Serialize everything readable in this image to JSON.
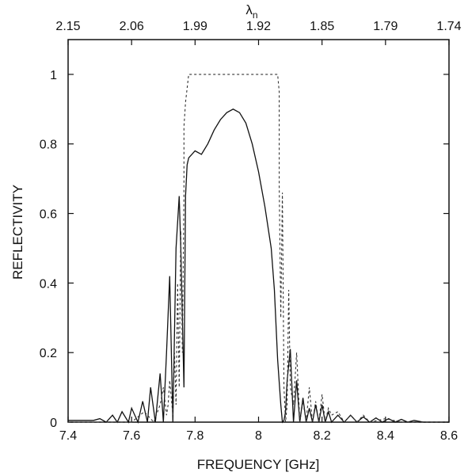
{
  "chart_data": {
    "type": "line",
    "xlabel": "FREQUENCY [GHz]",
    "ylabel": "REFLECTIVITY",
    "top_axis_label": "λ",
    "top_axis_label_sub": "n",
    "xlim": [
      7.4,
      8.6
    ],
    "ylim": [
      0,
      1.1
    ],
    "x_ticks": [
      7.4,
      7.6,
      7.8,
      8.0,
      8.2,
      8.4,
      8.6
    ],
    "x_tick_labels": [
      "7.4",
      "7.6",
      "7.8",
      "8",
      "8.2",
      "8.4",
      "8.6"
    ],
    "y_ticks": [
      0,
      0.2,
      0.4,
      0.6,
      0.8,
      1.0
    ],
    "y_tick_labels": [
      "0",
      "0.2",
      "0.4",
      "0.6",
      "0.8",
      "1"
    ],
    "top_ticks": [
      7.4,
      7.6,
      7.8,
      8.0,
      8.2,
      8.4,
      8.6
    ],
    "top_tick_labels": [
      "2.15",
      "2.06",
      "1.99",
      "1.92",
      "1.85",
      "1.79",
      "1.74"
    ],
    "grid": false,
    "series": [
      {
        "style": "solid",
        "x": [
          7.4,
          7.48,
          7.5,
          7.52,
          7.54,
          7.555,
          7.57,
          7.59,
          7.6,
          7.62,
          7.635,
          7.65,
          7.66,
          7.675,
          7.69,
          7.7,
          7.71,
          7.72,
          7.73,
          7.74,
          7.75,
          7.755,
          7.76,
          7.765,
          7.77,
          7.775,
          7.78,
          7.8,
          7.82,
          7.84,
          7.86,
          7.88,
          7.9,
          7.92,
          7.94,
          7.96,
          7.98,
          8.0,
          8.02,
          8.04,
          8.05,
          8.06,
          8.07,
          8.075,
          8.08,
          8.085,
          8.09,
          8.1,
          8.11,
          8.12,
          8.13,
          8.14,
          8.15,
          8.16,
          8.17,
          8.18,
          8.19,
          8.2,
          8.21,
          8.22,
          8.23,
          8.25,
          8.27,
          8.29,
          8.31,
          8.33,
          8.35,
          8.37,
          8.39,
          8.41,
          8.43,
          8.45,
          8.47,
          8.49,
          8.52,
          8.6
        ],
        "y": [
          0.005,
          0.005,
          0.01,
          0.0,
          0.02,
          0.0,
          0.03,
          0.0,
          0.04,
          0.0,
          0.06,
          0.0,
          0.1,
          0.0,
          0.14,
          0.0,
          0.2,
          0.42,
          0.0,
          0.5,
          0.65,
          0.5,
          0.3,
          0.1,
          0.65,
          0.74,
          0.76,
          0.78,
          0.77,
          0.8,
          0.84,
          0.87,
          0.89,
          0.9,
          0.89,
          0.86,
          0.8,
          0.72,
          0.62,
          0.5,
          0.38,
          0.18,
          0.05,
          0.0,
          0.005,
          0.03,
          0.12,
          0.21,
          0.0,
          0.12,
          0.0,
          0.07,
          0.0,
          0.04,
          0.0,
          0.05,
          0.0,
          0.05,
          0.0,
          0.03,
          0.0,
          0.02,
          0.0,
          0.02,
          0.0,
          0.015,
          0.0,
          0.012,
          0.0,
          0.01,
          0.0,
          0.008,
          0.0,
          0.005,
          0.0,
          0.0
        ]
      },
      {
        "style": "dotted",
        "x": [
          7.4,
          7.6,
          7.64,
          7.67,
          7.69,
          7.7,
          7.71,
          7.715,
          7.72,
          7.73,
          7.735,
          7.74,
          7.745,
          7.75,
          7.755,
          7.76,
          7.765,
          7.765,
          7.77,
          7.78,
          7.8,
          7.9,
          8.0,
          8.06,
          8.065,
          8.065,
          8.07,
          8.075,
          8.08,
          8.085,
          8.09,
          8.095,
          8.1,
          8.11,
          8.12,
          8.13,
          8.14,
          8.15,
          8.16,
          8.17,
          8.18,
          8.19,
          8.2,
          8.21,
          8.22,
          8.23,
          8.25,
          8.27,
          8.29,
          8.31,
          8.33,
          8.35,
          8.4,
          8.45,
          8.6
        ],
        "y": [
          0.0,
          0.0,
          0.03,
          0.0,
          0.05,
          0.1,
          0.02,
          0.05,
          0.12,
          0.02,
          0.2,
          0.05,
          0.4,
          0.1,
          0.55,
          0.2,
          0.66,
          0.85,
          0.92,
          1.0,
          1.0,
          1.0,
          1.0,
          1.0,
          0.95,
          0.68,
          0.3,
          0.66,
          0.1,
          0.0,
          0.05,
          0.38,
          0.1,
          0.05,
          0.2,
          0.0,
          0.06,
          0.0,
          0.1,
          0.0,
          0.06,
          0.0,
          0.08,
          0.0,
          0.04,
          0.02,
          0.03,
          0.0,
          0.02,
          0.0,
          0.02,
          0.0,
          0.01,
          0.0,
          0.0
        ]
      }
    ]
  }
}
